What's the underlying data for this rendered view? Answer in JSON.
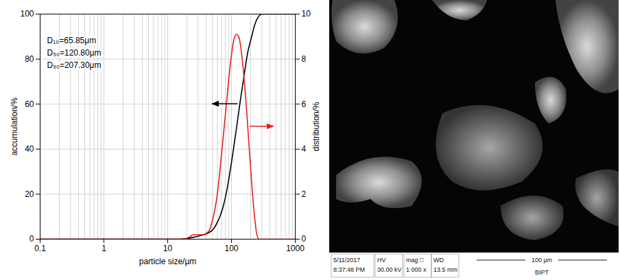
{
  "chart_data": {
    "type": "line",
    "x_label": "particle size/μm",
    "y_label": "accumulation/%",
    "y2_label": "distribution/%",
    "log": "x",
    "grid": true,
    "xlim": [
      0.1,
      1000
    ],
    "xticks": [
      0.1,
      1,
      10,
      100,
      1000
    ],
    "ylim": [
      0,
      100
    ],
    "yticks": [
      0,
      20,
      40,
      60,
      80,
      100
    ],
    "y2lim": [
      0,
      10
    ],
    "y2ticks": [
      0,
      2,
      4,
      6,
      8,
      10
    ],
    "annotations": [
      "D₁₀=65.85μm",
      "D₅₀=120.80μm",
      "D₉₀=207.30μm"
    ],
    "series": [
      {
        "color": "#000000",
        "x": [
          0.1,
          15,
          20,
          25,
          30,
          35,
          40,
          45,
          50,
          55,
          60,
          65.85,
          75,
          85,
          95,
          105,
          120.8,
          140,
          160,
          180,
          207.3,
          230,
          260,
          300,
          1000
        ],
        "values": [
          0,
          0,
          0.3,
          0.8,
          1.3,
          1.8,
          2.3,
          3,
          4,
          5.5,
          7.5,
          10,
          15,
          22,
          30,
          38,
          50,
          63,
          74,
          83,
          90,
          95,
          98.5,
          100,
          100
        ]
      },
      {
        "color": "#e8201e",
        "axis": "y2",
        "x": [
          0.1,
          18,
          22,
          25,
          30,
          35,
          40,
          45,
          50,
          60,
          70,
          80,
          90,
          100,
          110,
          120,
          130,
          150,
          170,
          190,
          210,
          230,
          250,
          270,
          1000
        ],
        "values": [
          0,
          0,
          0.1,
          0.2,
          0.2,
          0.2,
          0.25,
          0.4,
          0.8,
          2,
          3.8,
          5.5,
          7,
          8.2,
          8.9,
          9.1,
          9,
          7.8,
          6,
          4,
          2.3,
          1,
          0.2,
          0,
          0
        ]
      }
    ]
  },
  "image_panel": {
    "info_bar": [
      [
        "5/11/2017",
        "8:37:48 PM"
      ],
      [
        "HV",
        "30.00 kV"
      ],
      [
        "mag □",
        "1 000 x"
      ],
      [
        "WD",
        "13.5 mm"
      ]
    ],
    "scale_bar": "100 µm",
    "label": "BIPT"
  }
}
